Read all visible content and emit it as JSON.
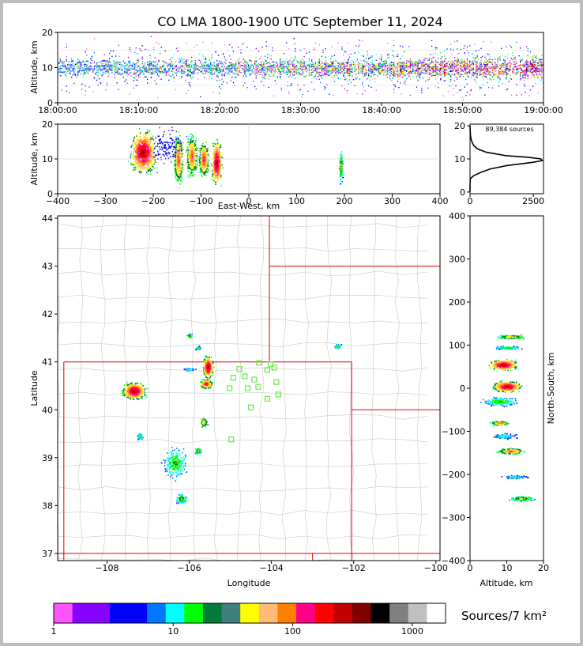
{
  "title": "CO LMA 1800-1900 UTC September 11, 2024",
  "chart_data": [
    {
      "id": "time-height",
      "type": "heatmap",
      "ylabel": "Altitude, km",
      "ylim": [
        0,
        20
      ],
      "yticks": [
        "0",
        "10",
        "20"
      ],
      "xticks": [
        "18:00:00",
        "18:10:00",
        "18:20:00",
        "18:30:00",
        "18:40:00",
        "18:50:00",
        "19:00:00"
      ],
      "xlim_minutes": [
        0,
        60
      ]
    },
    {
      "id": "ew-height",
      "type": "heatmap",
      "xlabel": "East-West, km",
      "ylabel": "Altitude, km",
      "xlim": [
        -400,
        400
      ],
      "ylim": [
        0,
        20
      ],
      "xticks": [
        "−400",
        "−300",
        "−200",
        "−100",
        "0",
        "100",
        "200",
        "300",
        "400"
      ],
      "yticks": [
        "0",
        "10",
        "20"
      ]
    },
    {
      "id": "altitude-histogram",
      "type": "line",
      "annotation": "89,384 sources",
      "xlim": [
        0,
        2900
      ],
      "ylim": [
        -0.5,
        20.5
      ],
      "xticks": [
        "0",
        "2500"
      ],
      "yticks": [
        "0",
        "10",
        "20"
      ],
      "profile": {
        "altitude": [
          0,
          2,
          4,
          5,
          6,
          7,
          8,
          9,
          9.5,
          10,
          10.5,
          11,
          12,
          13,
          14,
          15,
          16,
          17,
          18,
          19,
          20
        ],
        "count": [
          0,
          0,
          10,
          150,
          450,
          800,
          1450,
          2500,
          2850,
          2800,
          2300,
          1400,
          650,
          300,
          150,
          80,
          40,
          20,
          8,
          2,
          0
        ]
      }
    },
    {
      "id": "plan-view",
      "type": "heatmap",
      "xlabel": "Longitude",
      "ylabel": "Latitude",
      "xlim": [
        -109.2,
        -99.9
      ],
      "ylim": [
        36.85,
        44.05
      ],
      "xticks": [
        "−108",
        "−106",
        "−104",
        "−102",
        "−100"
      ],
      "yticks": [
        "37",
        "38",
        "39",
        "40",
        "41",
        "42",
        "43",
        "44"
      ],
      "stations": [
        [
          -104.78,
          40.85
        ],
        [
          -104.65,
          40.7
        ],
        [
          -104.42,
          40.63
        ],
        [
          -104.1,
          40.83
        ],
        [
          -103.93,
          40.88
        ],
        [
          -104.93,
          40.67
        ],
        [
          -104.3,
          40.98
        ],
        [
          -104.02,
          40.95
        ],
        [
          -105.02,
          40.45
        ],
        [
          -104.58,
          40.45
        ],
        [
          -104.32,
          40.48
        ],
        [
          -103.88,
          40.58
        ],
        [
          -103.83,
          40.32
        ],
        [
          -104.1,
          40.23
        ],
        [
          -104.5,
          40.05
        ],
        [
          -104.98,
          39.38
        ]
      ]
    },
    {
      "id": "ns-height",
      "type": "heatmap",
      "xlabel": "Altitude, km",
      "ylabel": "North-South, km",
      "xlim": [
        0,
        20
      ],
      "ylim": [
        -400,
        400
      ],
      "xticks": [
        "0",
        "10",
        "20"
      ],
      "yticks": [
        "−400",
        "−300",
        "−200",
        "−100",
        "0",
        "100",
        "200",
        "300",
        "400"
      ]
    }
  ],
  "colorbar": {
    "label": "Sources/7 km²",
    "ticks": [
      "1",
      "10",
      "100",
      "1000"
    ],
    "colors": [
      "#ff55ff",
      "#8800ff",
      "#8800ff",
      "#0000ff",
      "#0000ff",
      "#0077ff",
      "#00ffff",
      "#00ff00",
      "#007a3d",
      "#3f7f7f",
      "#ffff00",
      "#ffbb77",
      "#ff7f00",
      "#ff0088",
      "#ff0000",
      "#c00000",
      "#800000",
      "#000000",
      "#808080",
      "#c0c0c0",
      "#ffffff"
    ]
  }
}
